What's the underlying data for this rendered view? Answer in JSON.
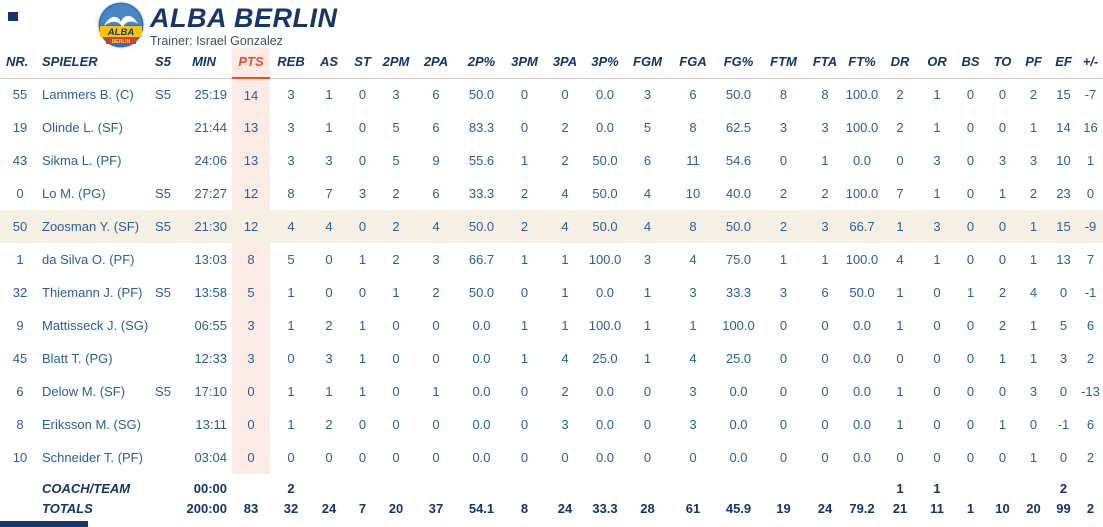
{
  "header": {
    "team_name": "ALBA BERLIN",
    "trainer": "Trainer: Israel Gonzalez",
    "logo_alba": "ALBA",
    "logo_berlin": "BERLIN",
    "colors": {
      "navy": "#14356d",
      "data_blue": "#2b5e9e",
      "accent_orange": "#e8502b",
      "pts_band": "#fcebe4",
      "highlight_row": "#f5f0e3",
      "logo_yellow": "#fdc400",
      "logo_red": "#d63a2f"
    }
  },
  "table": {
    "columns": [
      "NR.",
      "SPIELER",
      "S5",
      "MIN",
      "PTS",
      "REB",
      "AS",
      "ST",
      "2PM",
      "2PA",
      "2P%",
      "3PM",
      "3PA",
      "3P%",
      "FGM",
      "FGA",
      "FG%",
      "FTM",
      "FTA",
      "FT%",
      "DR",
      "OR",
      "BS",
      "TO",
      "PF",
      "EF",
      "+/-"
    ],
    "column_keys": [
      "nr",
      "spieler",
      "s5",
      "min",
      "pts",
      "reb",
      "as",
      "st",
      "2pm",
      "2pa",
      "2p-pct",
      "3pm",
      "3pa",
      "3p-pct",
      "fgm",
      "fga",
      "fg-pct",
      "ftm",
      "fta",
      "ft-pct",
      "dr",
      "or",
      "bs",
      "to",
      "pf",
      "ef",
      "plus-minus"
    ],
    "rows": [
      {
        "type": "player",
        "cells": [
          "55",
          "Lammers B. (C)",
          "S5",
          "25:19",
          "14",
          "3",
          "1",
          "0",
          "3",
          "6",
          "50.0",
          "0",
          "0",
          "0.0",
          "3",
          "6",
          "50.0",
          "8",
          "8",
          "100.0",
          "2",
          "1",
          "0",
          "0",
          "2",
          "15",
          "-7"
        ]
      },
      {
        "type": "player",
        "cells": [
          "19",
          "Olinde L. (SF)",
          "",
          "21:44",
          "13",
          "3",
          "1",
          "0",
          "5",
          "6",
          "83.3",
          "0",
          "2",
          "0.0",
          "5",
          "8",
          "62.5",
          "3",
          "3",
          "100.0",
          "2",
          "1",
          "0",
          "0",
          "1",
          "14",
          "16"
        ]
      },
      {
        "type": "player",
        "cells": [
          "43",
          "Sikma L. (PF)",
          "",
          "24:06",
          "13",
          "3",
          "3",
          "0",
          "5",
          "9",
          "55.6",
          "1",
          "2",
          "50.0",
          "6",
          "11",
          "54.6",
          "0",
          "1",
          "0.0",
          "0",
          "3",
          "0",
          "3",
          "3",
          "10",
          "1"
        ]
      },
      {
        "type": "player",
        "cells": [
          "0",
          "Lo M. (PG)",
          "S5",
          "27:27",
          "12",
          "8",
          "7",
          "3",
          "2",
          "6",
          "33.3",
          "2",
          "4",
          "50.0",
          "4",
          "10",
          "40.0",
          "2",
          "2",
          "100.0",
          "7",
          "1",
          "0",
          "1",
          "2",
          "23",
          "0"
        ]
      },
      {
        "type": "highlight",
        "cells": [
          "50",
          "Zoosman Y. (SF)",
          "S5",
          "21:30",
          "12",
          "4",
          "4",
          "0",
          "2",
          "4",
          "50.0",
          "2",
          "4",
          "50.0",
          "4",
          "8",
          "50.0",
          "2",
          "3",
          "66.7",
          "1",
          "3",
          "0",
          "0",
          "1",
          "15",
          "-9"
        ]
      },
      {
        "type": "player",
        "cells": [
          "1",
          "da Silva O. (PF)",
          "",
          "13:03",
          "8",
          "5",
          "0",
          "1",
          "2",
          "3",
          "66.7",
          "1",
          "1",
          "100.0",
          "3",
          "4",
          "75.0",
          "1",
          "1",
          "100.0",
          "4",
          "1",
          "0",
          "0",
          "1",
          "13",
          "7"
        ]
      },
      {
        "type": "player",
        "cells": [
          "32",
          "Thiemann J. (PF)",
          "S5",
          "13:58",
          "5",
          "1",
          "0",
          "0",
          "1",
          "2",
          "50.0",
          "0",
          "1",
          "0.0",
          "1",
          "3",
          "33.3",
          "3",
          "6",
          "50.0",
          "1",
          "0",
          "1",
          "2",
          "4",
          "0",
          "-1"
        ]
      },
      {
        "type": "player",
        "cells": [
          "9",
          "Mattisseck J. (SG)",
          "",
          "06:55",
          "3",
          "1",
          "2",
          "1",
          "0",
          "0",
          "0.0",
          "1",
          "1",
          "100.0",
          "1",
          "1",
          "100.0",
          "0",
          "0",
          "0.0",
          "1",
          "0",
          "0",
          "2",
          "1",
          "5",
          "6"
        ]
      },
      {
        "type": "player",
        "cells": [
          "45",
          "Blatt T. (PG)",
          "",
          "12:33",
          "3",
          "0",
          "3",
          "1",
          "0",
          "0",
          "0.0",
          "1",
          "4",
          "25.0",
          "1",
          "4",
          "25.0",
          "0",
          "0",
          "0.0",
          "0",
          "0",
          "0",
          "1",
          "1",
          "3",
          "2"
        ]
      },
      {
        "type": "player",
        "cells": [
          "6",
          "Delow M. (SF)",
          "S5",
          "17:10",
          "0",
          "1",
          "1",
          "1",
          "0",
          "1",
          "0.0",
          "0",
          "2",
          "0.0",
          "0",
          "3",
          "0.0",
          "0",
          "0",
          "0.0",
          "1",
          "0",
          "0",
          "0",
          "3",
          "0",
          "-13"
        ]
      },
      {
        "type": "player",
        "cells": [
          "8",
          "Eriksson M. (SG)",
          "",
          "13:11",
          "0",
          "1",
          "2",
          "0",
          "0",
          "0",
          "0.0",
          "0",
          "3",
          "0.0",
          "0",
          "3",
          "0.0",
          "0",
          "0",
          "0.0",
          "1",
          "0",
          "0",
          "1",
          "0",
          "-1",
          "6"
        ]
      },
      {
        "type": "player",
        "cells": [
          "10",
          "Schneider T. (PF)",
          "",
          "03:04",
          "0",
          "0",
          "0",
          "0",
          "0",
          "0",
          "0.0",
          "0",
          "0",
          "0.0",
          "0",
          "0",
          "0.0",
          "0",
          "0",
          "0.0",
          "0",
          "0",
          "0",
          "0",
          "1",
          "0",
          "2"
        ]
      },
      {
        "type": "coach",
        "cells": [
          "",
          "COACH/TEAM",
          "",
          "00:00",
          "",
          "2",
          "",
          "",
          "",
          "",
          "",
          "",
          "",
          "",
          "",
          "",
          "",
          "",
          "",
          "",
          "1",
          "1",
          "",
          "",
          "",
          "2",
          ""
        ]
      },
      {
        "type": "totals",
        "cells": [
          "",
          "TOTALS",
          "",
          "200:00",
          "83",
          "32",
          "24",
          "7",
          "20",
          "37",
          "54.1",
          "8",
          "24",
          "33.3",
          "28",
          "61",
          "45.9",
          "19",
          "24",
          "79.2",
          "21",
          "11",
          "1",
          "10",
          "20",
          "99",
          "2"
        ]
      }
    ]
  }
}
